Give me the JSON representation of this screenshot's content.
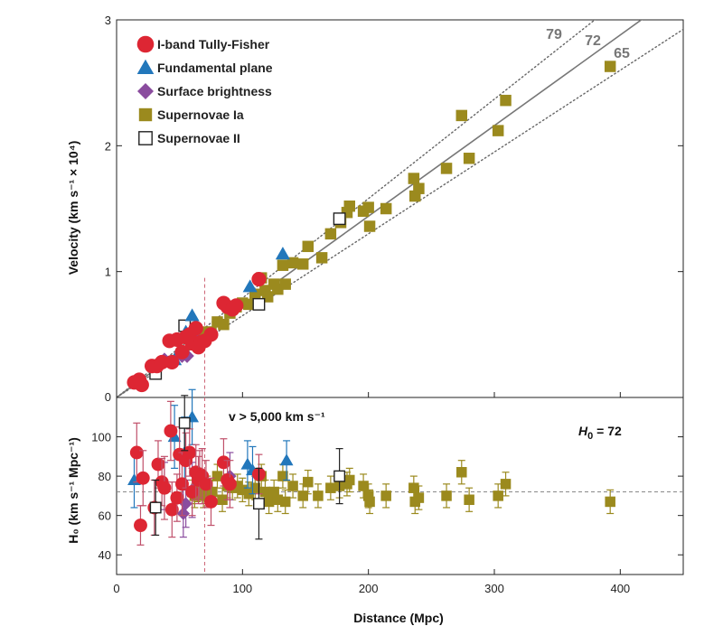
{
  "chart_data": [
    {
      "type": "scatter",
      "panel": "top",
      "title": "",
      "xlabel": "Distance (Mpc)",
      "ylabel": "Velocity (km s⁻¹ × 10⁴)",
      "xlim": [
        0,
        450
      ],
      "ylim": [
        0,
        3
      ],
      "xticks": [
        0,
        100,
        200,
        300,
        400
      ],
      "yticks": [
        1,
        2,
        3
      ],
      "ytick_labels": [
        "1",
        "2",
        "3"
      ],
      "zero_label": "0",
      "legend_position": "top-left",
      "legend": [
        {
          "series": "tf",
          "label": "I-band Tully-Fisher",
          "color": "#dd2633",
          "marker": "circle"
        },
        {
          "series": "fp",
          "label": "Fundamental plane",
          "color": "#2277bb",
          "marker": "triangle"
        },
        {
          "series": "sb",
          "label": "Surface brightness",
          "color": "#8a4c9e",
          "marker": "diamond"
        },
        {
          "series": "sn1a",
          "label": "Supernovae Ia",
          "color": "#9b8a1e",
          "marker": "square"
        },
        {
          "series": "sn2",
          "label": "Supernovae II",
          "color": "#222222",
          "marker": "open-square"
        }
      ],
      "lines": [
        {
          "label": "79",
          "slope": 79,
          "style": "dotted",
          "color": "#666666"
        },
        {
          "label": "72",
          "slope": 72,
          "style": "solid",
          "color": "#777777"
        },
        {
          "label": "65",
          "slope": 65,
          "style": "dotted",
          "color": "#666666"
        }
      ],
      "vline": {
        "x": 70,
        "style": "dashed",
        "color": "#cc6677"
      },
      "series": [
        {
          "name": "I-band Tully-Fisher",
          "key": "tf",
          "points": [
            [
              14,
              0.12
            ],
            [
              18,
              0.14
            ],
            [
              20,
              0.1
            ],
            [
              28,
              0.25
            ],
            [
              32,
              0.25
            ],
            [
              36,
              0.28
            ],
            [
              42,
              0.45
            ],
            [
              44,
              0.28
            ],
            [
              48,
              0.46
            ],
            [
              52,
              0.36
            ],
            [
              55,
              0.48
            ],
            [
              58,
              0.5
            ],
            [
              60,
              0.43
            ],
            [
              63,
              0.55
            ],
            [
              65,
              0.4
            ],
            [
              67,
              0.44
            ],
            [
              70,
              0.45
            ],
            [
              75,
              0.5
            ],
            [
              85,
              0.75
            ],
            [
              88,
              0.72
            ],
            [
              92,
              0.7
            ],
            [
              95,
              0.73
            ],
            [
              113,
              0.94
            ]
          ]
        },
        {
          "name": "Fundamental plane",
          "key": "fp",
          "points": [
            [
              46,
              0.3
            ],
            [
              55,
              0.52
            ],
            [
              60,
              0.65
            ],
            [
              106,
              0.88
            ],
            [
              132,
              1.14
            ]
          ]
        },
        {
          "name": "Surface brightness",
          "key": "sb",
          "points": [
            [
              38,
              0.3
            ],
            [
              52,
              0.33
            ],
            [
              56,
              0.33
            ],
            [
              62,
              0.48
            ],
            [
              90,
              0.7
            ]
          ]
        },
        {
          "name": "Supernovae Ia",
          "key": "sn1a",
          "points": [
            [
              62,
              0.42
            ],
            [
              65,
              0.44
            ],
            [
              68,
              0.47
            ],
            [
              72,
              0.52
            ],
            [
              75,
              0.52
            ],
            [
              80,
              0.6
            ],
            [
              85,
              0.58
            ],
            [
              90,
              0.67
            ],
            [
              95,
              0.72
            ],
            [
              100,
              0.75
            ],
            [
              105,
              0.74
            ],
            [
              110,
              0.82
            ],
            [
              115,
              0.95
            ],
            [
              118,
              0.85
            ],
            [
              120,
              0.8
            ],
            [
              125,
              0.9
            ],
            [
              128,
              0.86
            ],
            [
              132,
              1.05
            ],
            [
              134,
              0.9
            ],
            [
              140,
              1.07
            ],
            [
              148,
              1.06
            ],
            [
              152,
              1.2
            ],
            [
              163,
              1.11
            ],
            [
              170,
              1.3
            ],
            [
              178,
              1.39
            ],
            [
              183,
              1.47
            ],
            [
              185,
              1.52
            ],
            [
              196,
              1.48
            ],
            [
              200,
              1.51
            ],
            [
              201,
              1.36
            ],
            [
              214,
              1.5
            ],
            [
              236,
              1.74
            ],
            [
              237,
              1.6
            ],
            [
              240,
              1.66
            ],
            [
              262,
              1.82
            ],
            [
              274,
              2.24
            ],
            [
              280,
              1.9
            ],
            [
              303,
              2.12
            ],
            [
              309,
              2.36
            ],
            [
              392,
              2.63
            ]
          ]
        },
        {
          "name": "Supernovae II",
          "key": "sn2",
          "points": [
            [
              31,
              0.19
            ],
            [
              54,
              0.57
            ],
            [
              113,
              0.74
            ],
            [
              177,
              1.42
            ]
          ]
        }
      ]
    },
    {
      "type": "scatter",
      "panel": "bottom",
      "xlabel": "Distance (Mpc)",
      "ylabel": "H₀ (km s⁻¹ Mpc⁻¹)",
      "xlim": [
        0,
        450
      ],
      "ylim": [
        30,
        120
      ],
      "xticks": [
        0,
        100,
        200,
        300,
        400
      ],
      "yticks": [
        40,
        60,
        80,
        100
      ],
      "annotation": "v > 5,000 km s⁻¹",
      "h0_symbol": "H",
      "h0_sub": "0",
      "h0_value": "= 72",
      "hline": {
        "y": 72,
        "style": "dashed",
        "color": "#888888"
      },
      "vline": {
        "x": 70,
        "style": "dashed",
        "color": "#cc6677"
      },
      "series": [
        {
          "name": "I-band Tully-Fisher",
          "key": "tf",
          "points": [
            [
              16,
              92,
              15
            ],
            [
              19,
              55,
              10
            ],
            [
              21,
              79,
              14
            ],
            [
              30,
              64,
              14
            ],
            [
              33,
              86,
              12
            ],
            [
              36,
              77,
              12
            ],
            [
              38,
              74,
              16
            ],
            [
              43,
              103,
              15
            ],
            [
              44,
              63,
              14
            ],
            [
              48,
              69,
              12
            ],
            [
              50,
              91,
              14
            ],
            [
              52,
              76,
              16
            ],
            [
              55,
              88,
              14
            ],
            [
              58,
              92,
              12
            ],
            [
              60,
              72,
              12
            ],
            [
              63,
              82,
              14
            ],
            [
              65,
              78,
              12
            ],
            [
              66,
              81,
              12
            ],
            [
              68,
              80,
              14
            ],
            [
              71,
              76,
              12
            ],
            [
              75,
              67,
              12
            ],
            [
              85,
              87,
              12
            ],
            [
              88,
              78,
              10
            ],
            [
              90,
              76,
              12
            ],
            [
              113,
              81,
              10
            ]
          ]
        },
        {
          "name": "Fundamental plane",
          "key": "fp",
          "points": [
            [
              14,
              78,
              14
            ],
            [
              46,
              100,
              16
            ],
            [
              54,
              92,
              18
            ],
            [
              60,
              110,
              14
            ],
            [
              104,
              86,
              12
            ],
            [
              108,
              83,
              12
            ],
            [
              135,
              88,
              10
            ]
          ]
        },
        {
          "name": "Surface brightness",
          "key": "sb",
          "points": [
            [
              38,
              75,
              12
            ],
            [
              53,
              61,
              12
            ],
            [
              55,
              66,
              12
            ],
            [
              60,
              73,
              14
            ],
            [
              90,
              80,
              12
            ]
          ]
        },
        {
          "name": "Supernovae Ia",
          "key": "sn1a",
          "points": [
            [
              60,
              72,
              6
            ],
            [
              62,
              70,
              6
            ],
            [
              64,
              73,
              6
            ],
            [
              66,
              74,
              6
            ],
            [
              69,
              70,
              6
            ],
            [
              72,
              74,
              6
            ],
            [
              76,
              72,
              6
            ],
            [
              80,
              80,
              6
            ],
            [
              84,
              68,
              6
            ],
            [
              88,
              75,
              6
            ],
            [
              92,
              74,
              6
            ],
            [
              96,
              75,
              6
            ],
            [
              100,
              73,
              6
            ],
            [
              105,
              71,
              6
            ],
            [
              110,
              74,
              6
            ],
            [
              115,
              80,
              6
            ],
            [
              118,
              72,
              6
            ],
            [
              121,
              67,
              6
            ],
            [
              125,
              72,
              6
            ],
            [
              128,
              68,
              6
            ],
            [
              132,
              80,
              6
            ],
            [
              134,
              67,
              6
            ],
            [
              140,
              75,
              6
            ],
            [
              148,
              70,
              6
            ],
            [
              152,
              77,
              6
            ],
            [
              160,
              70,
              6
            ],
            [
              170,
              74,
              6
            ],
            [
              177,
              75,
              6
            ],
            [
              183,
              76,
              6
            ],
            [
              185,
              78,
              6
            ],
            [
              196,
              75,
              6
            ],
            [
              200,
              70,
              6
            ],
            [
              201,
              67,
              6
            ],
            [
              214,
              70,
              6
            ],
            [
              236,
              74,
              6
            ],
            [
              237,
              67,
              6
            ],
            [
              240,
              69,
              6
            ],
            [
              262,
              70,
              6
            ],
            [
              274,
              82,
              6
            ],
            [
              280,
              68,
              6
            ],
            [
              303,
              70,
              6
            ],
            [
              309,
              76,
              6
            ],
            [
              392,
              67,
              6
            ]
          ]
        },
        {
          "name": "Supernovae II",
          "key": "sn2",
          "points": [
            [
              31,
              64,
              14
            ],
            [
              54,
              107,
              14
            ],
            [
              113,
              66,
              18
            ],
            [
              177,
              80,
              14
            ]
          ]
        }
      ]
    }
  ]
}
